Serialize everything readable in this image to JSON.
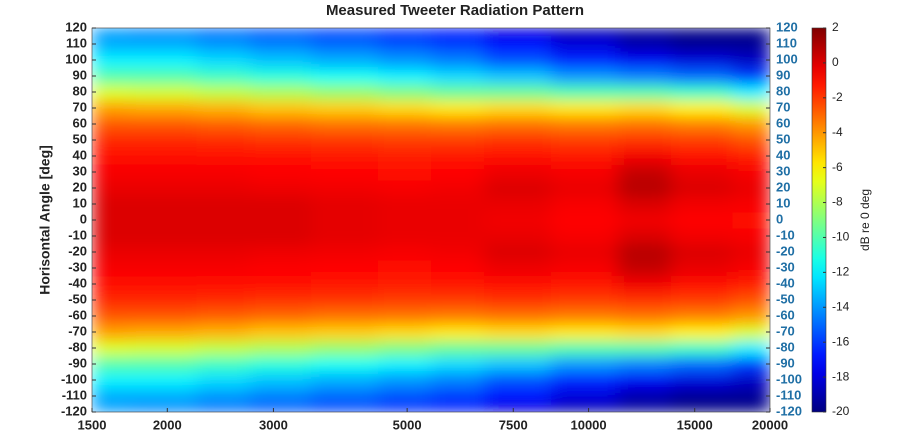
{
  "chart_data": {
    "type": "heatmap",
    "title": "Measured Tweeter Radiation Pattern",
    "ylabel": "Horisontal Angle [deg]",
    "colorbar_label": "dB re 0 deg",
    "colormap": "jet",
    "xscale": "log",
    "xlim": [
      1500,
      20000
    ],
    "xticks": [
      1500,
      2000,
      3000,
      5000,
      7500,
      10000,
      15000,
      20000
    ],
    "ylim": [
      -120,
      120
    ],
    "yticks": [
      -120,
      -110,
      -100,
      -90,
      -80,
      -70,
      -60,
      -50,
      -40,
      -30,
      -20,
      -10,
      0,
      10,
      20,
      30,
      40,
      50,
      60,
      70,
      80,
      90,
      100,
      110,
      120
    ],
    "right_axis_color": "#1f6fa5",
    "clim": [
      -20,
      2
    ],
    "colorbar_ticks": [
      -20,
      -18,
      -16,
      -14,
      -12,
      -10,
      -8,
      -6,
      -4,
      -2,
      0,
      2
    ],
    "x": [
      1500,
      2000,
      2500,
      3000,
      4000,
      5000,
      6000,
      7500,
      10000,
      12500,
      15000,
      20000
    ],
    "y": [
      -120,
      -110,
      -100,
      -90,
      -80,
      -70,
      -60,
      -50,
      -40,
      -30,
      -20,
      -10,
      0,
      10,
      20,
      30,
      40,
      50,
      60,
      70,
      80,
      90,
      100,
      110,
      120
    ],
    "z": [
      [
        -14,
        -14.5,
        -15,
        -15.5,
        -16,
        -16.5,
        -17,
        -18,
        -19,
        -19.5,
        -20,
        -20
      ],
      [
        -13.5,
        -13.5,
        -14,
        -14.5,
        -15,
        -15.5,
        -16,
        -17,
        -18,
        -19,
        -19.5,
        -19.5
      ],
      [
        -12,
        -12,
        -12.5,
        -13,
        -13.5,
        -14,
        -14.5,
        -15.5,
        -16.5,
        -17.5,
        -18,
        -18.5
      ],
      [
        -10,
        -10,
        -10.5,
        -11,
        -11.5,
        -12,
        -12.5,
        -13,
        -14,
        -14.5,
        -15,
        -16
      ],
      [
        -7,
        -7.2,
        -7.6,
        -8,
        -8.5,
        -9,
        -9.5,
        -9.5,
        -10,
        -10,
        -10.5,
        -12
      ],
      [
        -4.2,
        -4.4,
        -4.6,
        -5,
        -5.2,
        -5.5,
        -5.8,
        -5.5,
        -5.8,
        -5.5,
        -6,
        -7
      ],
      [
        -2.6,
        -2.6,
        -2.8,
        -3,
        -3.2,
        -3.3,
        -3.4,
        -3.2,
        -3.4,
        -3.2,
        -3.5,
        -4
      ],
      [
        -1.6,
        -1.6,
        -1.7,
        -1.8,
        -1.9,
        -2,
        -2,
        -1.8,
        -2,
        -1.8,
        -2,
        -2.5
      ],
      [
        -1,
        -1,
        -1,
        -1.1,
        -1.2,
        -1.3,
        -1.2,
        -1,
        -1.2,
        -0.5,
        -1,
        -1.3
      ],
      [
        -0.6,
        -0.6,
        -0.6,
        -0.7,
        -0.8,
        -0.9,
        -0.8,
        -0.4,
        -0.6,
        0.5,
        -0.3,
        -0.6
      ],
      [
        -0.3,
        -0.3,
        -0.3,
        -0.4,
        -0.5,
        -0.6,
        -0.5,
        0,
        -0.3,
        0.8,
        0,
        -0.3
      ],
      [
        0,
        0,
        0,
        0,
        -0.2,
        -0.3,
        -0.3,
        -0.3,
        -0.6,
        0,
        -0.5,
        -0.6
      ],
      [
        0,
        0,
        0,
        0,
        -0.2,
        -0.3,
        -0.3,
        -0.5,
        -0.8,
        -0.5,
        -0.8,
        -1
      ],
      [
        0,
        0,
        0,
        0,
        -0.2,
        -0.3,
        -0.3,
        -0.3,
        -0.6,
        0,
        -0.5,
        -0.6
      ],
      [
        -0.3,
        -0.3,
        -0.3,
        -0.4,
        -0.5,
        -0.6,
        -0.5,
        0,
        -0.3,
        0.8,
        0,
        -0.3
      ],
      [
        -0.6,
        -0.6,
        -0.6,
        -0.7,
        -0.8,
        -0.9,
        -0.8,
        -0.4,
        -0.6,
        0.5,
        -0.3,
        -0.6
      ],
      [
        -1,
        -1,
        -1,
        -1.1,
        -1.2,
        -1.3,
        -1.2,
        -1,
        -1.2,
        -0.5,
        -1,
        -1.3
      ],
      [
        -1.6,
        -1.6,
        -1.7,
        -1.8,
        -1.9,
        -2,
        -2,
        -1.8,
        -2,
        -1.8,
        -2,
        -2.5
      ],
      [
        -2.6,
        -2.6,
        -2.8,
        -3,
        -3.2,
        -3.3,
        -3.4,
        -3.2,
        -3.4,
        -3.2,
        -3.5,
        -4
      ],
      [
        -4.2,
        -4.4,
        -4.6,
        -5,
        -5.2,
        -5.5,
        -5.8,
        -5.5,
        -5.8,
        -5.5,
        -6,
        -7
      ],
      [
        -7,
        -7.2,
        -7.6,
        -8,
        -8.5,
        -9,
        -9.5,
        -9.5,
        -10,
        -10,
        -10.5,
        -12
      ],
      [
        -10,
        -10,
        -10.5,
        -11,
        -11.5,
        -12,
        -12.5,
        -13,
        -14,
        -14.5,
        -15,
        -16
      ],
      [
        -12,
        -12,
        -12.5,
        -13,
        -13.5,
        -14,
        -14.5,
        -15.5,
        -16.5,
        -17.5,
        -18,
        -18.5
      ],
      [
        -13.5,
        -13.5,
        -14,
        -14.5,
        -15,
        -15.5,
        -16,
        -17,
        -18,
        -19,
        -19.5,
        -19.5
      ],
      [
        -14,
        -14.5,
        -15,
        -15.5,
        -16,
        -16.5,
        -17,
        -18,
        -19,
        -19.5,
        -20,
        -20
      ]
    ]
  }
}
